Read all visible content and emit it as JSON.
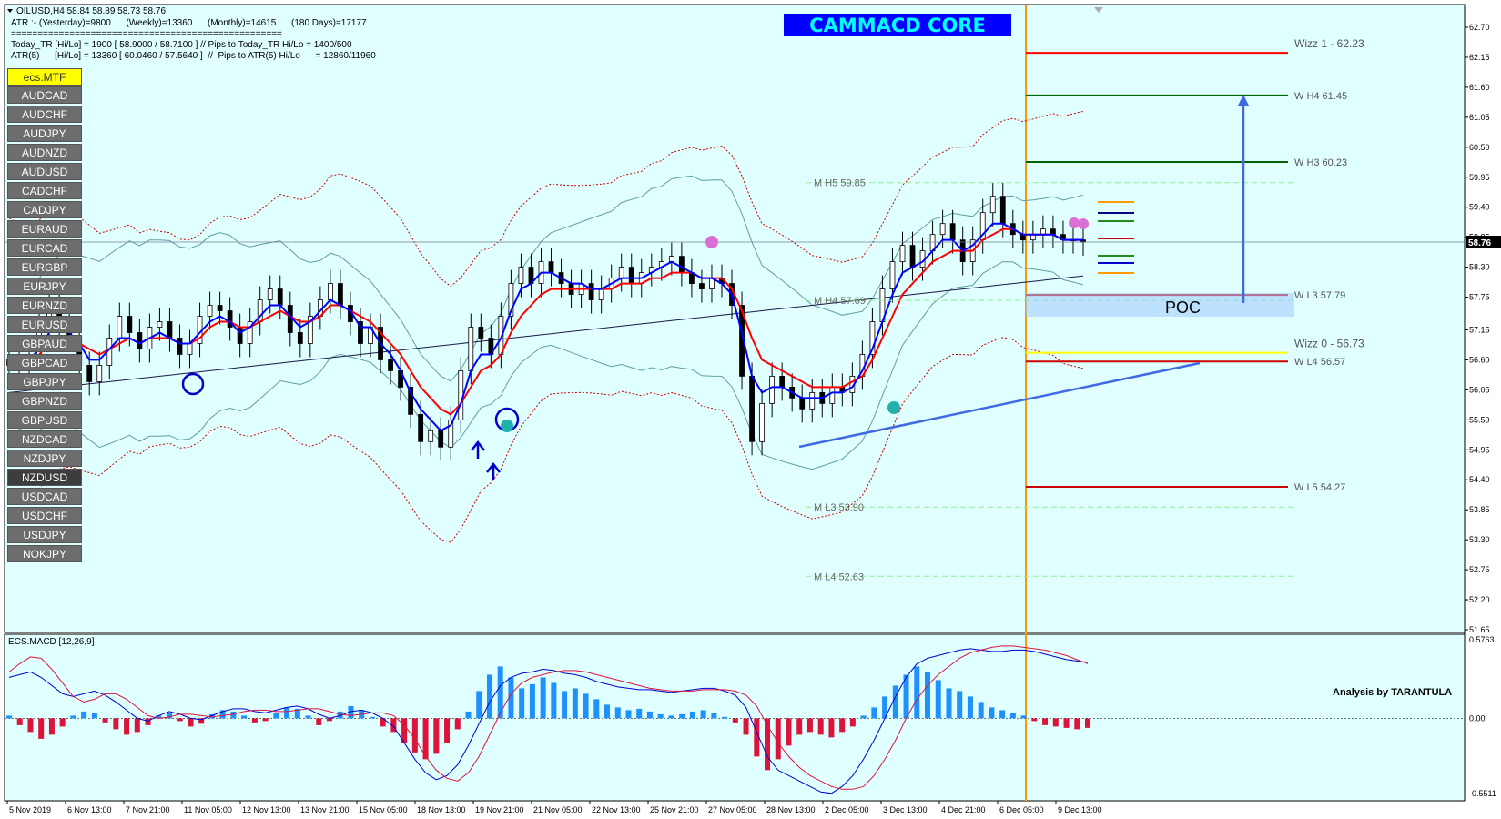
{
  "header": {
    "symbol_line": "OILUSD,H4  58.84 58.89 58.73 58.76",
    "atr_line": "ATR :- (Yesterday)=9800      (Weekly)=13360      (Monthly)=14615      (180 Days)=17177",
    "separator": "===================================================",
    "today_tr": "Today_TR [Hi/Lo] = 1900 [ 58.9000 / 58.7100 ]  // Pips to Today_TR Hi/Lo  = 1400/500",
    "atr5": "ATR(5)      [Hi/Lo] = 13360 [ 60.0460 / 57.5640 ]  //  Pips to ATR(5) Hi/Lo      = 12860/11960"
  },
  "title": "CAMMACD CORE",
  "watermark": "Analysis by TARANTULA",
  "poc_label": "POC",
  "panel_button": "ecs.MTF",
  "symbols": [
    "AUDCAD",
    "AUDCHF",
    "AUDJPY",
    "AUDNZD",
    "AUDUSD",
    "CADCHF",
    "CADJPY",
    "EURAUD",
    "EURCAD",
    "EURGBP",
    "EURJPY",
    "EURNZD",
    "EURUSD",
    "GBPAUD",
    "GBPCAD",
    "GBPJPY",
    "GBPNZD",
    "GBPUSD",
    "NZDCAD",
    "NZDJPY",
    "NZDUSD",
    "USDCAD",
    "USDCHF",
    "USDJPY",
    "NOKJPY"
  ],
  "macd_label": "ECS.MACD [12,26,9]",
  "current_price": "58.76",
  "colors": {
    "background": "#e0ffff",
    "bullish": "#ffffff",
    "ema_fast": "#0000ff",
    "ema_slow": "#ff0000",
    "title_bg": "#0000ff",
    "title_text": "#00ffff",
    "macd_up": "#1e90ff",
    "macd_down": "#dc143c"
  },
  "chart_data": [
    {
      "type": "candlestick",
      "price_axis": [
        "62.70",
        "62.15",
        "61.60",
        "61.05",
        "60.50",
        "59.95",
        "59.40",
        "58.85",
        "58.30",
        "57.75",
        "57.15",
        "56.60",
        "56.05",
        "55.50",
        "54.95",
        "54.40",
        "53.85",
        "53.30",
        "52.75",
        "52.20",
        "51.65"
      ],
      "ylim": [
        51.65,
        62.7
      ],
      "time_axis": [
        "5 Nov 2019",
        "6 Nov 13:00",
        "7 Nov 21:00",
        "11 Nov 05:00",
        "12 Nov 13:00",
        "13 Nov 21:00",
        "15 Nov 05:00",
        "18 Nov 13:00",
        "19 Nov 21:00",
        "21 Nov 05:00",
        "22 Nov 13:00",
        "25 Nov 21:00",
        "27 Nov 05:00",
        "28 Nov 13:00",
        "2 Dec 05:00",
        "3 Dec 13:00",
        "4 Dec 21:00",
        "6 Dec 05:00",
        "9 Dec 13:00"
      ],
      "close_series": [
        56.6,
        56.5,
        56.7,
        57.2,
        57.6,
        57.3,
        57.0,
        56.5,
        56.2,
        56.5,
        57.0,
        57.4,
        57.1,
        56.8,
        57.2,
        57.3,
        57.0,
        56.7,
        56.9,
        57.4,
        57.6,
        57.5,
        57.2,
        56.9,
        57.3,
        57.7,
        57.9,
        57.6,
        57.1,
        56.9,
        57.4,
        57.7,
        58.0,
        57.6,
        57.3,
        56.9,
        57.2,
        56.6,
        56.4,
        56.1,
        55.6,
        55.1,
        55.3,
        55.0,
        55.5,
        56.4,
        57.2,
        57.0,
        56.7,
        57.4,
        58.0,
        58.3,
        58.0,
        58.4,
        58.2,
        58.0,
        57.8,
        58.0,
        57.7,
        57.9,
        58.1,
        58.3,
        58.0,
        58.2,
        58.3,
        58.4,
        58.5,
        58.2,
        58.0,
        57.9,
        58.1,
        58.0,
        57.6,
        56.3,
        55.1,
        55.8,
        56.3,
        56.1,
        55.9,
        55.7,
        56.0,
        55.8,
        56.1,
        56.0,
        56.3,
        56.7,
        57.3,
        57.9,
        58.4,
        58.7,
        58.3,
        58.6,
        58.9,
        59.1,
        58.8,
        58.4,
        58.8,
        59.3,
        59.6,
        59.1,
        58.9,
        58.8,
        58.9,
        59.0,
        58.9,
        58.8,
        58.8,
        58.76
      ],
      "ema_fast_series": [
        56.6,
        56.5,
        56.6,
        56.8,
        57.1,
        57.2,
        57.1,
        56.9,
        56.6,
        56.6,
        56.8,
        57.0,
        57.0,
        56.9,
        57.0,
        57.1,
        57.0,
        56.9,
        56.9,
        57.1,
        57.3,
        57.4,
        57.3,
        57.1,
        57.2,
        57.4,
        57.6,
        57.6,
        57.4,
        57.2,
        57.3,
        57.5,
        57.7,
        57.6,
        57.5,
        57.2,
        57.2,
        56.9,
        56.7,
        56.4,
        56.0,
        55.7,
        55.5,
        55.3,
        55.4,
        55.8,
        56.4,
        56.7,
        56.7,
        57.0,
        57.5,
        57.9,
        58.0,
        58.2,
        58.2,
        58.1,
        58.0,
        58.0,
        57.9,
        57.9,
        58.0,
        58.1,
        58.1,
        58.1,
        58.2,
        58.3,
        58.4,
        58.3,
        58.2,
        58.1,
        58.1,
        58.0,
        57.8,
        57.1,
        56.3,
        56.0,
        56.1,
        56.1,
        56.0,
        55.9,
        55.9,
        55.9,
        56.0,
        56.0,
        56.1,
        56.4,
        56.8,
        57.3,
        57.8,
        58.2,
        58.3,
        58.4,
        58.6,
        58.8,
        58.8,
        58.6,
        58.7,
        58.9,
        59.1,
        59.1,
        59.0,
        58.9,
        58.9,
        58.9,
        58.9,
        58.8,
        58.8,
        58.8
      ],
      "ema_slow_series": [
        56.7,
        56.6,
        56.6,
        56.7,
        56.9,
        57.0,
        57.0,
        56.9,
        56.8,
        56.7,
        56.8,
        56.9,
        57.0,
        56.9,
        57.0,
        57.0,
        57.0,
        56.9,
        56.9,
        57.0,
        57.2,
        57.3,
        57.3,
        57.2,
        57.2,
        57.3,
        57.4,
        57.5,
        57.4,
        57.3,
        57.3,
        57.4,
        57.6,
        57.6,
        57.5,
        57.4,
        57.3,
        57.1,
        56.9,
        56.7,
        56.4,
        56.1,
        55.9,
        55.7,
        55.6,
        55.8,
        56.1,
        56.4,
        56.5,
        56.7,
        57.1,
        57.4,
        57.6,
        57.8,
        57.9,
        57.9,
        57.9,
        57.9,
        57.9,
        57.9,
        57.9,
        58.0,
        58.0,
        58.0,
        58.1,
        58.1,
        58.2,
        58.2,
        58.2,
        58.1,
        58.1,
        58.1,
        57.9,
        57.5,
        57.0,
        56.6,
        56.5,
        56.4,
        56.3,
        56.2,
        56.1,
        56.1,
        56.1,
        56.1,
        56.2,
        56.3,
        56.6,
        57.0,
        57.4,
        57.8,
        58.0,
        58.2,
        58.4,
        58.5,
        58.6,
        58.6,
        58.6,
        58.8,
        58.9,
        59.0,
        59.0,
        58.9,
        58.9,
        58.9,
        58.9,
        58.8,
        58.8,
        58.8
      ],
      "pivot_labels": [
        {
          "text": "M  H5 59.85",
          "value": 59.85
        },
        {
          "text": "M  H4 57.69",
          "value": 57.69
        },
        {
          "text": "M  L3 53.90",
          "value": 53.9
        },
        {
          "text": "M  L4 52.63",
          "value": 52.63
        },
        {
          "text": "W  H4 61.45",
          "value": 61.45,
          "color": "#006400"
        },
        {
          "text": "W  H3 60.23",
          "value": 60.23,
          "color": "#006400"
        },
        {
          "text": "W  L3 57.79",
          "value": 57.79,
          "color": "#cc0000"
        },
        {
          "text": "W  L4 56.57",
          "value": 56.57,
          "color": "#cc0000"
        },
        {
          "text": "W  L5 54.27",
          "value": 54.27,
          "color": "#cc0000"
        },
        {
          "text": "Wizz 1 - 62.23",
          "value": 62.23,
          "color": "#ff0000"
        },
        {
          "text": "Wizz 0 - 56.73",
          "value": 56.73,
          "color": "#ffff00"
        }
      ]
    },
    {
      "type": "histogram",
      "title": "ECS.MACD [12,26,9]",
      "axis_labels": [
        "0.5763",
        "0.00",
        "-0.5511"
      ],
      "ylim": [
        -0.5511,
        0.5763
      ],
      "histogram": [
        0.02,
        -0.05,
        -0.1,
        -0.15,
        -0.12,
        -0.06,
        0.02,
        0.05,
        0.04,
        -0.03,
        -0.08,
        -0.12,
        -0.1,
        -0.05,
        0.02,
        0.04,
        -0.02,
        -0.06,
        -0.04,
        0.03,
        0.06,
        0.05,
        0.02,
        -0.03,
        -0.02,
        0.04,
        0.08,
        0.07,
        0.02,
        -0.05,
        -0.02,
        0.05,
        0.09,
        0.06,
        0.01,
        -0.06,
        -0.1,
        -0.18,
        -0.25,
        -0.3,
        -0.26,
        -0.18,
        -0.08,
        0.05,
        0.2,
        0.32,
        0.38,
        0.3,
        0.22,
        0.25,
        0.3,
        0.26,
        0.2,
        0.22,
        0.18,
        0.14,
        0.1,
        0.08,
        0.06,
        0.07,
        0.05,
        0.03,
        0.02,
        0.03,
        0.05,
        0.06,
        0.04,
        0.01,
        -0.03,
        -0.12,
        -0.28,
        -0.38,
        -0.3,
        -0.2,
        -0.12,
        -0.1,
        -0.12,
        -0.14,
        -0.1,
        -0.06,
        0.02,
        0.08,
        0.16,
        0.24,
        0.32,
        0.38,
        0.34,
        0.28,
        0.22,
        0.2,
        0.16,
        0.12,
        0.08,
        0.06,
        0.04,
        0.02,
        -0.02,
        -0.05,
        -0.06,
        -0.07,
        -0.08,
        -0.07
      ],
      "macd_line": [
        0.3,
        0.32,
        0.34,
        0.3,
        0.24,
        0.18,
        0.16,
        0.18,
        0.2,
        0.17,
        0.12,
        0.06,
        0.0,
        -0.02,
        0.02,
        0.05,
        0.03,
        0.0,
        -0.01,
        0.02,
        0.05,
        0.07,
        0.07,
        0.05,
        0.04,
        0.06,
        0.08,
        0.09,
        0.07,
        0.03,
        0.0,
        0.02,
        0.05,
        0.06,
        0.04,
        0.0,
        -0.06,
        -0.18,
        -0.3,
        -0.4,
        -0.45,
        -0.42,
        -0.34,
        -0.2,
        -0.04,
        0.12,
        0.24,
        0.3,
        0.33,
        0.34,
        0.36,
        0.35,
        0.33,
        0.32,
        0.3,
        0.27,
        0.25,
        0.23,
        0.22,
        0.21,
        0.21,
        0.2,
        0.19,
        0.2,
        0.21,
        0.22,
        0.22,
        0.2,
        0.17,
        0.08,
        -0.1,
        -0.28,
        -0.38,
        -0.42,
        -0.46,
        -0.5,
        -0.54,
        -0.55,
        -0.5,
        -0.42,
        -0.3,
        -0.16,
        0.0,
        0.16,
        0.3,
        0.4,
        0.44,
        0.46,
        0.48,
        0.5,
        0.51,
        0.5,
        0.49,
        0.49,
        0.5,
        0.5,
        0.49,
        0.47,
        0.45,
        0.43,
        0.42,
        0.41
      ],
      "signal_line": [
        0.34,
        0.4,
        0.45,
        0.44,
        0.36,
        0.26,
        0.16,
        0.12,
        0.14,
        0.18,
        0.18,
        0.14,
        0.08,
        0.02,
        0.0,
        0.01,
        0.03,
        0.03,
        0.02,
        0.01,
        0.02,
        0.03,
        0.05,
        0.06,
        0.06,
        0.05,
        0.05,
        0.06,
        0.07,
        0.07,
        0.05,
        0.03,
        0.02,
        0.03,
        0.04,
        0.04,
        0.02,
        -0.05,
        -0.15,
        -0.28,
        -0.38,
        -0.44,
        -0.46,
        -0.4,
        -0.28,
        -0.12,
        0.04,
        0.18,
        0.26,
        0.3,
        0.32,
        0.34,
        0.35,
        0.35,
        0.34,
        0.32,
        0.3,
        0.28,
        0.26,
        0.24,
        0.22,
        0.21,
        0.2,
        0.2,
        0.2,
        0.21,
        0.21,
        0.21,
        0.2,
        0.17,
        0.09,
        -0.05,
        -0.18,
        -0.28,
        -0.36,
        -0.42,
        -0.46,
        -0.5,
        -0.52,
        -0.52,
        -0.5,
        -0.42,
        -0.3,
        -0.16,
        0.0,
        0.14,
        0.24,
        0.32,
        0.38,
        0.44,
        0.48,
        0.5,
        0.52,
        0.53,
        0.53,
        0.52,
        0.51,
        0.5,
        0.48,
        0.46,
        0.43,
        0.4
      ]
    }
  ]
}
